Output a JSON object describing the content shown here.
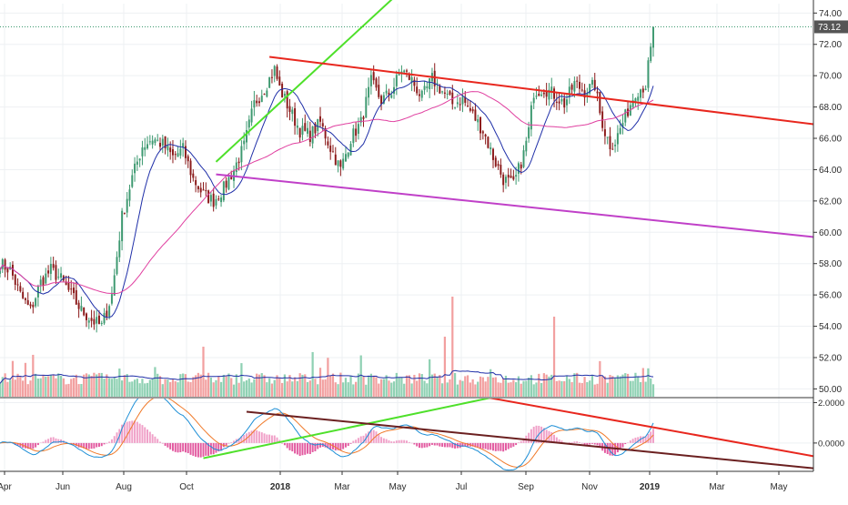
{
  "colors": {
    "grid": "#eef0f3",
    "axis_text": "#2b2b2b",
    "up": "#3d9970",
    "down": "#8b1a1a",
    "ma_fast": "#1f2fa8",
    "ma_slow": "#e040a0",
    "trend_red": "#e8271e",
    "trend_green": "#4ee02a",
    "trend_purple": "#c040c8",
    "trend_brown": "#6b2020",
    "vol_up": "#8fd1b3",
    "vol_down": "#f2a0a0",
    "vol_ma": "#1f2fa8",
    "macd_line": "#1e8fd6",
    "signal_line": "#f07a2a",
    "hist_up": "#f0a0c8",
    "hist_down": "#e25aa0",
    "last_badge": "#555555"
  },
  "chart_data": [
    {
      "type": "candlestick",
      "price_axis": {
        "ticks": [
          "74.00",
          "72.00",
          "70.00",
          "68.00",
          "66.00",
          "64.00",
          "62.00",
          "60.00",
          "58.00",
          "56.00",
          "54.00",
          "52.00",
          "50.00"
        ],
        "range": [
          49.5,
          74.6
        ]
      },
      "time_axis": {
        "ticks": [
          "Apr",
          "Jun",
          "Aug",
          "Oct",
          "2018",
          "Mar",
          "May",
          "Jul",
          "Sep",
          "Nov",
          "2019",
          "Mar",
          "May"
        ],
        "index_range": [
          0,
          320
        ]
      },
      "last_price": "73.12",
      "price_anchors": [
        [
          0,
          58.0
        ],
        [
          4,
          57.6
        ],
        [
          8,
          56.0
        ],
        [
          12,
          55.0
        ],
        [
          16,
          56.8
        ],
        [
          20,
          57.6
        ],
        [
          24,
          57.0
        ],
        [
          28,
          56.0
        ],
        [
          32,
          55.0
        ],
        [
          36,
          54.4
        ],
        [
          40,
          54.0
        ],
        [
          44,
          56.0
        ],
        [
          48,
          61.0
        ],
        [
          52,
          63.5
        ],
        [
          56,
          65.5
        ],
        [
          60,
          66.0
        ],
        [
          64,
          65.6
        ],
        [
          68,
          64.8
        ],
        [
          72,
          65.3
        ],
        [
          76,
          63.4
        ],
        [
          80,
          62.4
        ],
        [
          84,
          62.0
        ],
        [
          88,
          62.8
        ],
        [
          92,
          64.0
        ],
        [
          96,
          65.5
        ],
        [
          100,
          68.2
        ],
        [
          104,
          69.2
        ],
        [
          108,
          70.4
        ],
        [
          110,
          69.2
        ],
        [
          114,
          67.8
        ],
        [
          118,
          66.5
        ],
        [
          122,
          66.2
        ],
        [
          126,
          67.0
        ],
        [
          130,
          65.4
        ],
        [
          134,
          64.0
        ],
        [
          138,
          66.0
        ],
        [
          142,
          67.0
        ],
        [
          146,
          69.6
        ],
        [
          150,
          68.4
        ],
        [
          154,
          69.0
        ],
        [
          158,
          70.4
        ],
        [
          162,
          69.7
        ],
        [
          166,
          68.6
        ],
        [
          170,
          69.8
        ],
        [
          174,
          69.0
        ],
        [
          178,
          68.2
        ],
        [
          182,
          68.5
        ],
        [
          186,
          67.5
        ],
        [
          190,
          66.5
        ],
        [
          194,
          64.8
        ],
        [
          198,
          63.4
        ],
        [
          202,
          63.0
        ],
        [
          206,
          65.0
        ],
        [
          208,
          66.5
        ],
        [
          210,
          69.0
        ],
        [
          214,
          69.2
        ],
        [
          218,
          68.8
        ],
        [
          222,
          68.2
        ],
        [
          226,
          69.5
        ],
        [
          230,
          69.0
        ],
        [
          234,
          69.4
        ],
        [
          236,
          67.6
        ],
        [
          238,
          66.4
        ],
        [
          240,
          65.6
        ],
        [
          242,
          65.8
        ],
        [
          244,
          66.6
        ],
        [
          246,
          67.4
        ],
        [
          248,
          68.2
        ],
        [
          250,
          69.0
        ],
        [
          252,
          69.2
        ],
        [
          254,
          69.4
        ],
        [
          255,
          70.6
        ],
        [
          256,
          71.6
        ],
        [
          257,
          73.12
        ]
      ],
      "trendlines": [
        {
          "from": [
            85,
            64.5
          ],
          "to": [
            155,
            75.0
          ],
          "color": "trend_green"
        },
        {
          "from": [
            85,
            63.7
          ],
          "to": [
            320,
            59.7
          ],
          "color": "trend_purple"
        },
        {
          "from": [
            106,
            71.2
          ],
          "to": [
            320,
            66.9
          ],
          "color": "trend_red"
        }
      ]
    },
    {
      "type": "bar",
      "name": "volume",
      "index_range": [
        0,
        257
      ]
    },
    {
      "type": "line",
      "name": "macd",
      "y_axis": {
        "ticks": [
          "2.0000",
          "0.0000"
        ],
        "range": [
          -1.4,
          2.2
        ]
      },
      "trendlines": [
        {
          "from": [
            80,
            -0.75
          ],
          "to": [
            218,
            2.9
          ],
          "color": "trend_green"
        },
        {
          "from": [
            97,
            1.55
          ],
          "to": [
            320,
            -1.25
          ],
          "color": "trend_brown"
        },
        {
          "from": [
            150,
            3.2
          ],
          "to": [
            320,
            -0.65
          ],
          "color": "trend_red"
        }
      ]
    }
  ]
}
